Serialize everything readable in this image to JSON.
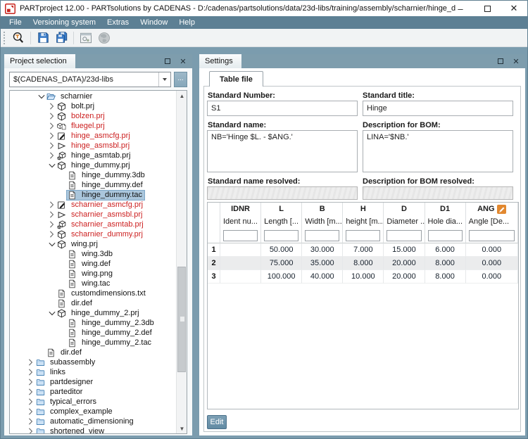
{
  "window": {
    "title": "PARTproject 12.00 - PARTsolutions by CADENAS - D:/cadenas/partsolutions/data/23d-libs/training/assembly/scharnier/hinge_dummy.prj",
    "controls": [
      "minimize",
      "maximize",
      "close"
    ]
  },
  "menu": {
    "items": [
      "File",
      "Versioning system",
      "Extras",
      "Window",
      "Help"
    ]
  },
  "toolbar": {
    "buttons": [
      "search",
      "save",
      "save-all",
      "project-window",
      "publish"
    ]
  },
  "project_panel": {
    "title": "Project selection",
    "path_combo": {
      "value": "$(CADENAS_DATA)/23d-libs"
    },
    "browse_label": "...",
    "tree": [
      {
        "label": "scharnier",
        "icon": "folder-open",
        "depth": 3,
        "expand": "open"
      },
      {
        "label": "bolt.prj",
        "icon": "cube",
        "depth": 4,
        "expand": "closed"
      },
      {
        "label": "bolzen.prj",
        "icon": "cube",
        "depth": 4,
        "expand": "closed",
        "red": true
      },
      {
        "label": "fluegel.prj",
        "icon": "cube-page",
        "depth": 4,
        "expand": "closed",
        "red": true
      },
      {
        "label": "hinge_asmcfg.prj",
        "icon": "edit",
        "depth": 4,
        "expand": "closed",
        "red": true
      },
      {
        "label": "hinge_asmsbl.prj",
        "icon": "triangle",
        "depth": 4,
        "expand": "closed",
        "red": true
      },
      {
        "label": "hinge_asmtab.prj",
        "icon": "cube-gear",
        "depth": 4,
        "expand": "closed"
      },
      {
        "label": "hinge_dummy.prj",
        "icon": "cube",
        "depth": 4,
        "expand": "open"
      },
      {
        "label": "hinge_dummy.3db",
        "icon": "file",
        "depth": 5
      },
      {
        "label": "hinge_dummy.def",
        "icon": "file",
        "depth": 5
      },
      {
        "label": "hinge_dummy.tac",
        "icon": "file",
        "depth": 5,
        "selected": true
      },
      {
        "label": "scharnier_asmcfg.prj",
        "icon": "edit",
        "depth": 4,
        "expand": "closed",
        "red": true
      },
      {
        "label": "scharnier_asmsbl.prj",
        "icon": "triangle",
        "depth": 4,
        "expand": "closed",
        "red": true
      },
      {
        "label": "scharnier_asmtab.prj",
        "icon": "cube-gear",
        "depth": 4,
        "expand": "closed",
        "red": true
      },
      {
        "label": "scharnier_dummy.prj",
        "icon": "cube",
        "depth": 4,
        "expand": "closed",
        "red": true
      },
      {
        "label": "wing.prj",
        "icon": "cube",
        "depth": 4,
        "expand": "open"
      },
      {
        "label": "wing.3db",
        "icon": "file",
        "depth": 5
      },
      {
        "label": "wing.def",
        "icon": "file",
        "depth": 5
      },
      {
        "label": "wing.png",
        "icon": "file",
        "depth": 5
      },
      {
        "label": "wing.tac",
        "icon": "file",
        "depth": 5
      },
      {
        "label": "customdimensions.txt",
        "icon": "file",
        "depth": 4
      },
      {
        "label": "dir.def",
        "icon": "file",
        "depth": 4
      },
      {
        "label": "hinge_dummy_2.prj",
        "icon": "cube",
        "depth": 4,
        "expand": "open"
      },
      {
        "label": "hinge_dummy_2.3db",
        "icon": "file",
        "depth": 5
      },
      {
        "label": "hinge_dummy_2.def",
        "icon": "file",
        "depth": 5
      },
      {
        "label": "hinge_dummy_2.tac",
        "icon": "file",
        "depth": 5
      },
      {
        "label": "dir.def",
        "icon": "file",
        "depth": 3
      },
      {
        "label": "subassembly",
        "icon": "folder",
        "depth": 2,
        "expand": "closed"
      },
      {
        "label": "links",
        "icon": "folder",
        "depth": 2,
        "expand": "closed"
      },
      {
        "label": "partdesigner",
        "icon": "folder",
        "depth": 2,
        "expand": "closed"
      },
      {
        "label": "parteditor",
        "icon": "folder",
        "depth": 2,
        "expand": "closed"
      },
      {
        "label": "typical_errors",
        "icon": "folder",
        "depth": 2,
        "expand": "closed"
      },
      {
        "label": "complex_example",
        "icon": "folder",
        "depth": 2,
        "expand": "closed"
      },
      {
        "label": "automatic_dimensioning",
        "icon": "folder",
        "depth": 2,
        "expand": "closed"
      },
      {
        "label": "shortened_view",
        "icon": "folder",
        "depth": 2,
        "expand": "closed"
      }
    ]
  },
  "settings_panel": {
    "title": "Settings",
    "tab": "Table file",
    "fields": {
      "standard_number": {
        "label": "Standard Number:",
        "value": "S1"
      },
      "standard_title": {
        "label": "Standard title:",
        "value": "Hinge"
      },
      "standard_name": {
        "label": "Standard name:",
        "value": "NB='Hinge $L. - $ANG.'"
      },
      "bom_description": {
        "label": "Description for BOM:",
        "value": "LINA='$NB.'"
      },
      "standard_name_resolved": {
        "label": "Standard name resolved:",
        "value": ""
      },
      "bom_description_resolved": {
        "label": "Description for BOM resolved:",
        "value": ""
      }
    },
    "table": {
      "columns": [
        {
          "key": "IDNR",
          "desc": "Ident nu..."
        },
        {
          "key": "L",
          "desc": "Length [..."
        },
        {
          "key": "B",
          "desc": "Width [m..."
        },
        {
          "key": "H",
          "desc": "height [m..."
        },
        {
          "key": "D",
          "desc": "Diameter ..."
        },
        {
          "key": "D1",
          "desc": "Hole dia...",
          "": ""
        },
        {
          "key": "ANG",
          "desc": "Angle [De...",
          "edited": true
        }
      ],
      "rows": [
        {
          "num": "1",
          "cells": [
            "",
            "50.000",
            "30.000",
            "7.000",
            "15.000",
            "6.000",
            "0.000"
          ]
        },
        {
          "num": "2",
          "cells": [
            "",
            "75.000",
            "35.000",
            "8.000",
            "20.000",
            "8.000",
            "0.000"
          ]
        },
        {
          "num": "3",
          "cells": [
            "",
            "100.000",
            "40.000",
            "10.000",
            "20.000",
            "8.000",
            "0.000"
          ]
        }
      ]
    },
    "edit_button": "Edit"
  }
}
